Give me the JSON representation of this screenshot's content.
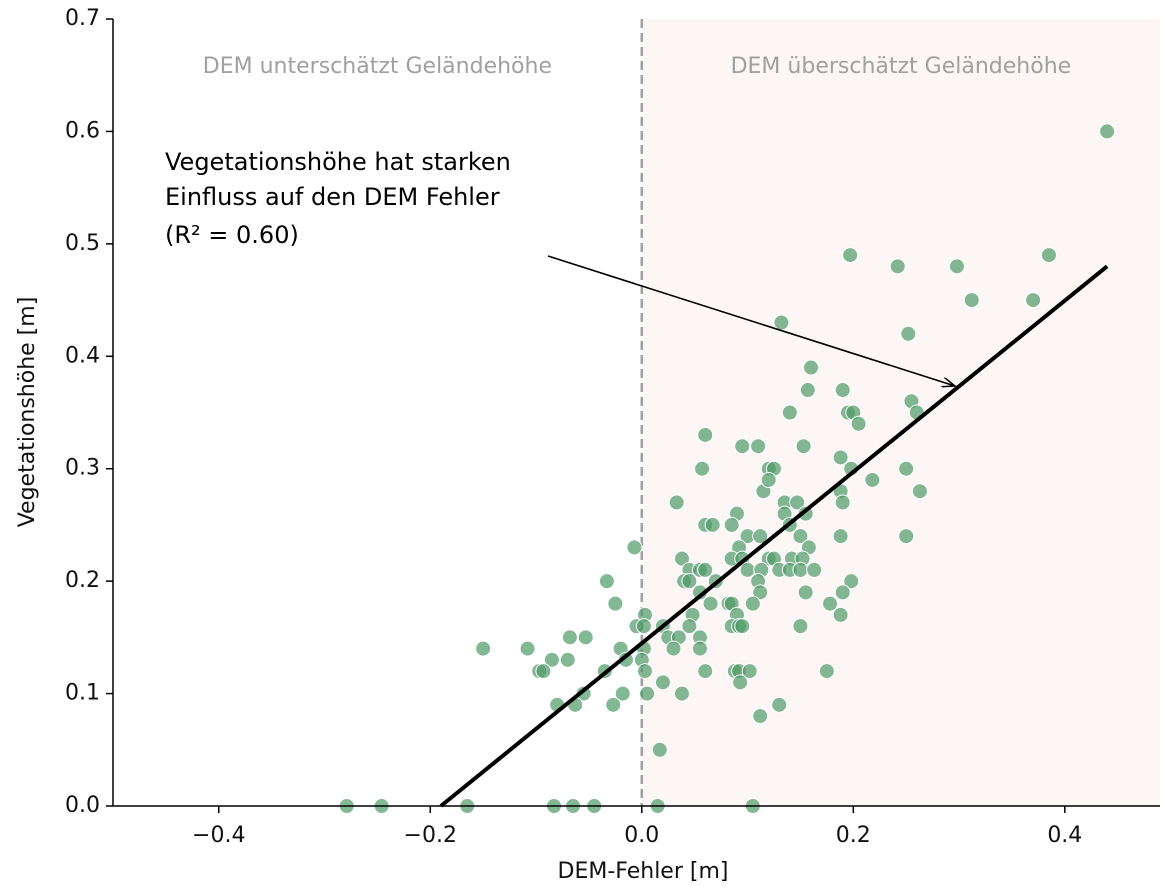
{
  "chart_data": {
    "type": "scatter",
    "xlabel": "DEM-Fehler [m]",
    "ylabel": "Vegetationshöhe [m]",
    "region_labels": [
      "DEM unterschätzt Geländehöhe",
      "DEM überschätzt Geländehöhe"
    ],
    "annotation": [
      "Vegetationshöhe hat starken",
      "Einfluss auf den DEM Fehler",
      "(R² = 0.60)"
    ],
    "xlim": [
      -0.5,
      0.49
    ],
    "ylim": [
      0,
      0.7
    ],
    "xticks": [
      {
        "value": -0.4,
        "label": "−0.4"
      },
      {
        "value": -0.2,
        "label": "−0.2"
      },
      {
        "value": 0,
        "label": "0.0"
      },
      {
        "value": 0.2,
        "label": "0.2"
      },
      {
        "value": 0.4,
        "label": "0.4"
      }
    ],
    "yticks": [
      {
        "value": 0,
        "label": "0.0"
      },
      0.1,
      0.2,
      0.3,
      0.4,
      0.5,
      0.6,
      0.7
    ],
    "color": "#4f9a68",
    "fit_line": {
      "color": "#000000",
      "x": [
        -0.19,
        0.44
      ],
      "y": [
        0,
        0.48
      ]
    },
    "x": [
      0.44,
      0.197,
      0.242,
      0.298,
      0.385,
      0.312,
      0.37,
      0.132,
      0.252,
      0.16,
      0.157,
      0.19,
      0.14,
      0.195,
      0.2,
      0.205,
      0.255,
      0.26,
      0.06,
      0.095,
      0.11,
      0.153,
      0.188,
      0.057,
      0.12,
      0.125,
      0.198,
      0.25,
      0.115,
      0.188,
      0.263,
      0.218,
      0.12,
      0.033,
      0.135,
      0.147,
      0.19,
      0.135,
      0.09,
      0.155,
      0.06,
      0.067,
      0.085,
      0.14,
      0.25,
      0.188,
      0.1,
      0.112,
      0.15,
      -0.007,
      0.092,
      0.12,
      0.158,
      0.038,
      0.085,
      0.095,
      0.125,
      0.142,
      0.152,
      0.045,
      0.055,
      0.06,
      0.1,
      0.113,
      0.13,
      0.14,
      0.15,
      0.163,
      -0.033,
      0.04,
      0.045,
      0.07,
      0.11,
      0.198,
      0.055,
      0.112,
      0.155,
      0.19,
      -0.025,
      0.065,
      0.082,
      0.085,
      0.105,
      0.178,
      0.003,
      0.048,
      0.09,
      0.188,
      -0.005,
      0.002,
      0.02,
      0.045,
      0.085,
      0.092,
      0.095,
      0.15,
      -0.068,
      -0.053,
      0.025,
      0.035,
      0.055,
      -0.15,
      -0.108,
      -0.02,
      0.002,
      0.03,
      0.055,
      -0.085,
      -0.07,
      -0.015,
      0,
      -0.097,
      -0.093,
      -0.035,
      0.003,
      0.06,
      0.088,
      0.092,
      0.102,
      0.175,
      -0.055,
      -0.018,
      0.005,
      0.038,
      0.093,
      0.02,
      -0.08,
      -0.063,
      -0.027,
      0.13,
      0.112,
      0.017,
      -0.279,
      -0.246,
      -0.165,
      -0.083,
      -0.065,
      -0.045,
      0.015,
      0.105
    ],
    "values": [
      0.6,
      0.49,
      0.48,
      0.48,
      0.49,
      0.45,
      0.45,
      0.43,
      0.42,
      0.39,
      0.37,
      0.37,
      0.35,
      0.35,
      0.35,
      0.34,
      0.36,
      0.35,
      0.33,
      0.32,
      0.32,
      0.32,
      0.31,
      0.3,
      0.3,
      0.3,
      0.3,
      0.3,
      0.28,
      0.28,
      0.28,
      0.29,
      0.29,
      0.27,
      0.27,
      0.27,
      0.27,
      0.26,
      0.26,
      0.26,
      0.25,
      0.25,
      0.25,
      0.25,
      0.24,
      0.24,
      0.24,
      0.24,
      0.24,
      0.23,
      0.23,
      0.22,
      0.23,
      0.22,
      0.22,
      0.22,
      0.22,
      0.22,
      0.22,
      0.21,
      0.21,
      0.21,
      0.21,
      0.21,
      0.21,
      0.21,
      0.21,
      0.21,
      0.2,
      0.2,
      0.2,
      0.2,
      0.2,
      0.2,
      0.19,
      0.19,
      0.19,
      0.19,
      0.18,
      0.18,
      0.18,
      0.18,
      0.18,
      0.18,
      0.17,
      0.17,
      0.17,
      0.17,
      0.16,
      0.16,
      0.16,
      0.16,
      0.16,
      0.16,
      0.16,
      0.16,
      0.15,
      0.15,
      0.15,
      0.15,
      0.15,
      0.14,
      0.14,
      0.14,
      0.14,
      0.14,
      0.14,
      0.13,
      0.13,
      0.13,
      0.13,
      0.12,
      0.12,
      0.12,
      0.12,
      0.12,
      0.12,
      0.12,
      0.12,
      0.12,
      0.1,
      0.1,
      0.1,
      0.1,
      0.11,
      0.11,
      0.09,
      0.09,
      0.09,
      0.09,
      0.08,
      0.05,
      0,
      0,
      0,
      0,
      0,
      0,
      0,
      0
    ]
  }
}
